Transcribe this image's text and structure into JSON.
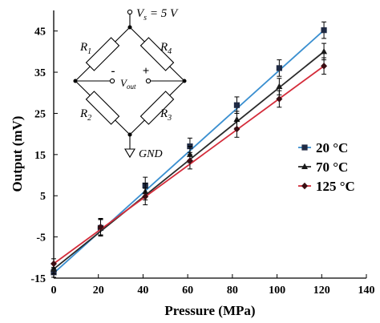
{
  "chart_data": {
    "type": "line",
    "xlabel": "Pressure (MPa)",
    "ylabel": "Output (mV)",
    "xlim": [
      0,
      140
    ],
    "ylim": [
      -15,
      50
    ],
    "x_ticks": [
      0,
      20,
      40,
      60,
      80,
      100,
      120,
      140
    ],
    "y_ticks": [
      -15,
      -5,
      5,
      15,
      25,
      35,
      45
    ],
    "x_tick_labels": [
      "0",
      "20",
      "40",
      "60",
      "80",
      "100",
      "120",
      "140"
    ],
    "y_tick_labels": [
      "-15",
      "-5",
      "5",
      "15",
      "25",
      "35",
      "45"
    ],
    "grid": false,
    "legend_position": "right",
    "series": [
      {
        "name": "20 °C",
        "color": "#3a8fd0",
        "marker": "square",
        "x": [
          0,
          21,
          41,
          61,
          82,
          101,
          121
        ],
        "y": [
          -13.6,
          -2.8,
          7.5,
          17.0,
          27.0,
          36.0,
          45.2
        ],
        "error": [
          1.2,
          2.0,
          2.0,
          2.0,
          2.0,
          2.0,
          2.0
        ],
        "fit": [
          [
            0,
            -13.8
          ],
          [
            121,
            45.2
          ]
        ]
      },
      {
        "name": "70 °C",
        "color": "#2b2b2b",
        "marker": "triangle",
        "x": [
          0,
          21,
          41,
          61,
          82,
          101,
          121
        ],
        "y": [
          -12.8,
          -2.5,
          6.0,
          15.0,
          23.5,
          31.5,
          40.0
        ],
        "error": [
          1.2,
          2.0,
          2.0,
          2.0,
          2.0,
          2.0,
          2.0
        ],
        "fit": [
          [
            0,
            -12.8
          ],
          [
            121,
            40.0
          ]
        ]
      },
      {
        "name": "125 °C",
        "color": "#d42c3a",
        "marker": "diamond",
        "x": [
          0,
          21,
          41,
          61,
          82,
          101,
          121
        ],
        "y": [
          -11.5,
          -2.6,
          4.8,
          13.5,
          21.2,
          28.5,
          36.5
        ],
        "error": [
          1.2,
          2.0,
          2.0,
          2.0,
          2.0,
          2.0,
          2.0
        ],
        "fit": [
          [
            0,
            -11.5
          ],
          [
            121,
            36.5
          ]
        ]
      }
    ]
  },
  "inset": {
    "vs_label": "V",
    "vs_sub": "s",
    "vs_value": " = 5 V",
    "r1": "R",
    "r1_sub": "1",
    "r2": "R",
    "r2_sub": "2",
    "r3": "R",
    "r3_sub": "3",
    "r4": "R",
    "r4_sub": "4",
    "minus": "-",
    "plus": "+",
    "vout": "V",
    "vout_sub": "out",
    "gnd": "GND"
  }
}
